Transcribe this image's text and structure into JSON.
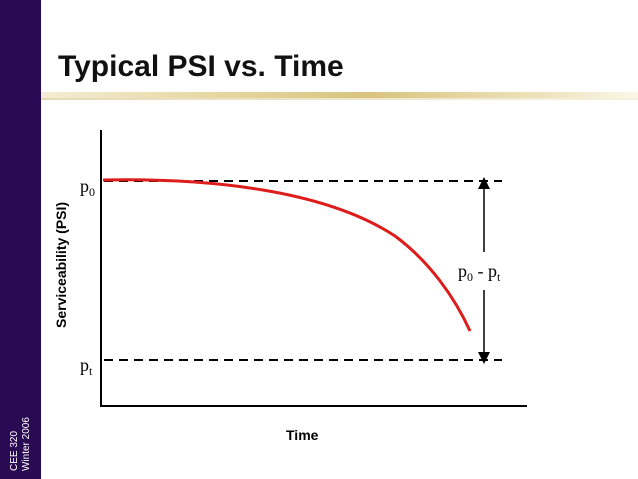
{
  "slide": {
    "title": "Typical PSI vs. Time",
    "course": "CEE 320",
    "term": "Winter 2006"
  },
  "diagram": {
    "y_axis_label": "Serviceability (PSI)",
    "x_axis_label": "Time",
    "p0_label": "p",
    "p0_sub": "0",
    "pt_label": "p",
    "pt_sub": "t",
    "range_label": {
      "p1": "p",
      "s1": "0",
      "dash": " - ",
      "p2": "p",
      "s2": "t"
    }
  },
  "colors": {
    "sidebar": "#2a0a52",
    "curve": "#dd1c1c",
    "lines": "#000000"
  }
}
